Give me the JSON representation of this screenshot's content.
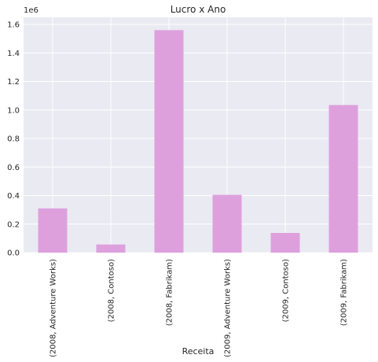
{
  "chart_data": {
    "type": "bar",
    "title": "Lucro x Ano",
    "xlabel": "Receita",
    "ylabel": "",
    "y_scale_offset": "1e6",
    "categories": [
      "(2008, Adventure Works)",
      "(2008, Contoso)",
      "(2008, Fabrikam)",
      "(2009, Adventure Works)",
      "(2009, Contoso)",
      "(2009, Fabrikam)"
    ],
    "values": [
      310000,
      57000,
      1560000,
      405000,
      138000,
      1035000
    ],
    "ylim": [
      0,
      1650000
    ],
    "y_ticks": [
      0,
      200000,
      400000,
      600000,
      800000,
      1000000,
      1200000,
      1400000,
      1600000
    ],
    "y_tick_labels": [
      "0.0",
      "0.2",
      "0.4",
      "0.6",
      "0.8",
      "1.0",
      "1.2",
      "1.4",
      "1.6"
    ],
    "grid": true,
    "legend": "none",
    "colors": {
      "bar": "#dda0dd",
      "plot_background": "#eaeaf2",
      "grid": "#ffffff",
      "text": "#262626"
    }
  }
}
